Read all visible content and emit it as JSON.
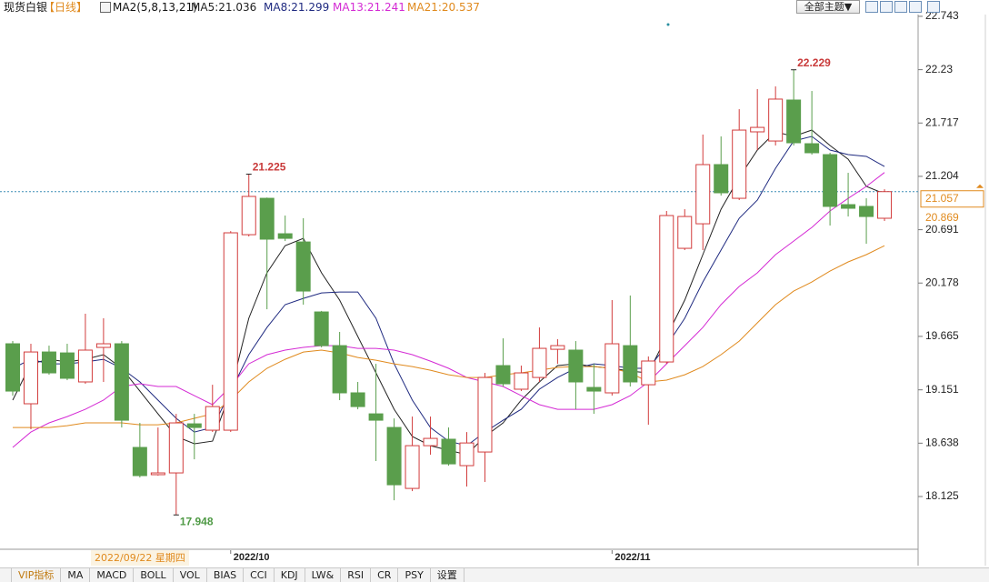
{
  "header": {
    "instrument": "现货白银",
    "period": "【日线】",
    "indicator": "MA2(5,8,13,21)",
    "theme_button": "全部主题▼"
  },
  "chart_data": {
    "type": "candlestick",
    "categories": [
      null,
      null,
      null,
      null,
      null,
      null,
      null,
      null,
      null,
      null,
      null,
      null,
      "2022/10",
      null,
      null,
      null,
      null,
      null,
      null,
      null,
      null,
      null,
      null,
      null,
      null,
      null,
      null,
      null,
      null,
      null,
      null,
      null,
      null,
      "2022/11",
      null,
      null,
      null,
      null,
      null,
      null,
      null,
      null,
      null,
      null,
      null,
      null,
      null,
      null,
      null
    ],
    "open": [
      19.594,
      19.017,
      19.515,
      19.506,
      19.227,
      19.559,
      19.594,
      18.597,
      18.335,
      18.352,
      18.824,
      18.763,
      18.763,
      20.643,
      20.993,
      20.652,
      20.573,
      19.9,
      19.576,
      19.122,
      18.92,
      18.789,
      18.203,
      18.614,
      18.676,
      18.422,
      18.553,
      19.384,
      19.157,
      19.27,
      19.541,
      19.533,
      19.174,
      19.122,
      19.576,
      19.2,
      19.419,
      20.512,
      20.748,
      21.317,
      20.993,
      21.632,
      21.544,
      21.938,
      21.518,
      21.413,
      20.932,
      20.915,
      20.801
    ],
    "high": [
      19.62,
      19.594,
      19.576,
      19.594,
      19.883,
      19.839,
      19.62,
      18.833,
      18.789,
      18.92,
      18.92,
      19.2,
      20.678,
      21.225,
      21.0,
      20.827,
      20.801,
      19.91,
      19.708,
      19.227,
      19.401,
      18.876,
      18.894,
      18.894,
      18.789,
      18.745,
      19.314,
      19.646,
      19.384,
      19.751,
      19.638,
      19.62,
      19.401,
      20.014,
      20.058,
      19.472,
      20.871,
      20.888,
      21.606,
      21.588,
      21.85,
      22.043,
      22.069,
      22.229,
      22.025,
      21.431,
      21.238,
      20.993,
      21.08
    ],
    "low": [
      19.095,
      18.772,
      19.296,
      19.244,
      19.209,
      19.227,
      18.789,
      18.308,
      18.326,
      17.948,
      18.483,
      18.746,
      18.746,
      20.626,
      19.926,
      20.582,
      19.97,
      19.559,
      19.052,
      18.964,
      18.466,
      18.089,
      18.177,
      18.527,
      18.422,
      18.221,
      18.265,
      19.183,
      19.139,
      19.227,
      19.401,
      18.964,
      18.92,
      19.096,
      19.183,
      18.815,
      19.401,
      20.495,
      20.495,
      21.019,
      20.976,
      21.457,
      21.501,
      21.501,
      21.413,
      20.731,
      20.818,
      20.556,
      20.775
    ],
    "close": [
      19.139,
      19.515,
      19.314,
      19.262,
      19.533,
      19.594,
      18.859,
      18.326,
      18.352,
      18.833,
      18.789,
      18.99,
      20.661,
      21.011,
      20.6,
      20.608,
      20.101,
      19.576,
      19.122,
      18.99,
      18.859,
      18.238,
      18.614,
      18.684,
      18.439,
      18.64,
      19.27,
      19.209,
      19.314,
      19.55,
      19.576,
      19.227,
      19.139,
      19.594,
      19.227,
      19.428,
      20.827,
      20.818,
      21.317,
      21.046,
      21.649,
      21.675,
      21.947,
      21.527,
      21.431,
      20.915,
      20.897,
      20.818,
      21.057
    ],
    "up_color": "#d23c3c",
    "down_color": "#5a9e4c",
    "series": [
      {
        "name": "MA5:21.036",
        "color": "#222222",
        "values": [
          19.052,
          19.401,
          19.445,
          19.419,
          19.445,
          19.489,
          19.358,
          19.139,
          18.92,
          18.702,
          18.632,
          18.658,
          19.139,
          19.839,
          20.276,
          20.538,
          20.608,
          20.276,
          20.014,
          19.664,
          19.314,
          18.964,
          18.702,
          18.614,
          18.57,
          18.527,
          18.702,
          18.833,
          19.052,
          19.227,
          19.384,
          19.401,
          19.375,
          19.358,
          19.331,
          19.314,
          19.664,
          20.014,
          20.451,
          20.888,
          21.194,
          21.457,
          21.632,
          21.588,
          21.649,
          21.501,
          21.369,
          21.107,
          21.036
        ]
      },
      {
        "name": "MA8:21.299",
        "color": "#1f2a80",
        "values": [
          19.358,
          19.445,
          19.401,
          19.401,
          19.419,
          19.445,
          19.358,
          19.227,
          19.052,
          18.877,
          18.745,
          18.789,
          19.139,
          19.489,
          19.751,
          19.97,
          20.031,
          20.083,
          20.092,
          20.092,
          19.839,
          19.401,
          19.052,
          18.789,
          18.658,
          18.614,
          18.745,
          18.859,
          18.964,
          19.157,
          19.27,
          19.358,
          19.401,
          19.384,
          19.358,
          19.358,
          19.576,
          19.839,
          20.188,
          20.495,
          20.801,
          20.976,
          21.282,
          21.544,
          21.588,
          21.457,
          21.413,
          21.396,
          21.299
        ]
      },
      {
        "name": "MA13:21.241",
        "color": "#d42ad4",
        "values": [
          18.597,
          18.745,
          18.833,
          18.894,
          18.964,
          19.052,
          19.183,
          19.209,
          19.183,
          19.183,
          19.095,
          19.008,
          19.183,
          19.401,
          19.489,
          19.533,
          19.559,
          19.576,
          19.576,
          19.55,
          19.55,
          19.533,
          19.489,
          19.427,
          19.358,
          19.27,
          19.227,
          19.183,
          19.095,
          19.008,
          18.964,
          18.964,
          18.964,
          19.008,
          19.095,
          19.227,
          19.401,
          19.576,
          19.751,
          19.97,
          20.145,
          20.276,
          20.451,
          20.582,
          20.713,
          20.871,
          20.993,
          21.107,
          21.241
        ]
      },
      {
        "name": "MA21:20.537",
        "color": "#e08a1e",
        "values": [
          18.789,
          18.789,
          18.789,
          18.806,
          18.833,
          18.833,
          18.833,
          18.815,
          18.815,
          18.833,
          18.877,
          18.92,
          19.052,
          19.227,
          19.358,
          19.445,
          19.515,
          19.533,
          19.506,
          19.462,
          19.436,
          19.401,
          19.375,
          19.34,
          19.296,
          19.27,
          19.27,
          19.296,
          19.314,
          19.34,
          19.367,
          19.375,
          19.375,
          19.358,
          19.314,
          19.227,
          19.244,
          19.296,
          19.375,
          19.489,
          19.62,
          19.795,
          19.97,
          20.101,
          20.188,
          20.293,
          20.381,
          20.451,
          20.537
        ]
      }
    ],
    "ylim": [
      17.609,
      22.9
    ],
    "yticks": [
      18.125,
      18.638,
      19.151,
      19.665,
      20.178,
      20.691,
      21.204,
      21.717,
      22.23,
      22.743
    ],
    "grid": false,
    "annotations": [
      {
        "index": 13,
        "field": "high"
      },
      {
        "index": 43,
        "field": "high"
      },
      {
        "index": 9,
        "field": "low"
      }
    ],
    "second_price_tag": 20.869,
    "cursor_date": "2022/09/22 星期四"
  },
  "tabs": [
    "VIP指标",
    "MA",
    "MACD",
    "BOLL",
    "VOL",
    "BIAS",
    "CCI",
    "KDJ",
    "LW&",
    "RSI",
    "CR",
    "PSY",
    "设置"
  ]
}
